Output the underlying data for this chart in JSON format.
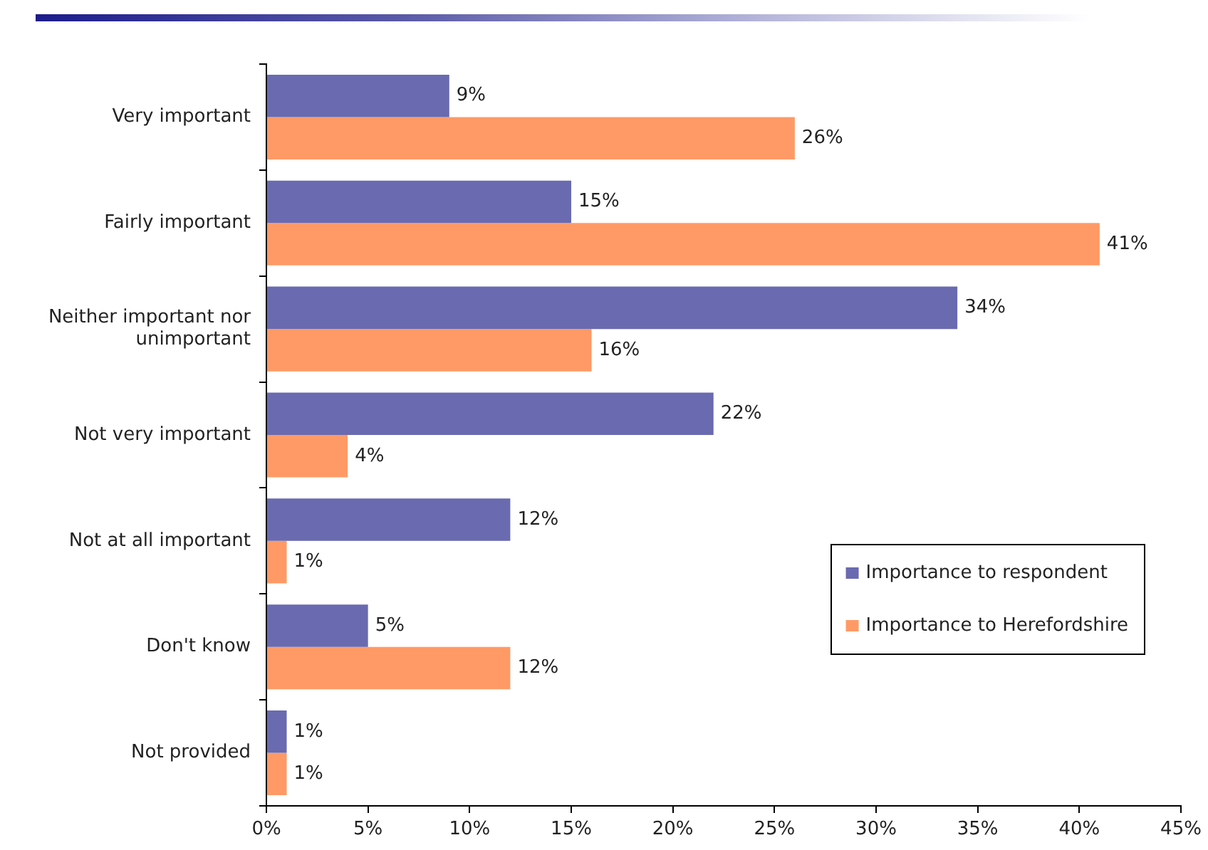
{
  "chart_data": {
    "type": "bar",
    "orientation": "horizontal",
    "categories": [
      "Very important",
      "Fairly important",
      "Neither important nor unimportant",
      "Not very important",
      "Not at all important",
      "Don't know",
      "Not provided"
    ],
    "series": [
      {
        "name": "Importance to respondent",
        "color": "#6a6ab0",
        "values": [
          9,
          15,
          34,
          22,
          12,
          5,
          1
        ],
        "value_labels": [
          "9%",
          "15%",
          "34%",
          "22%",
          "12%",
          "5%",
          "1%"
        ]
      },
      {
        "name": "Importance to Herefordshire",
        "color": "#ff9a66",
        "values": [
          26,
          41,
          16,
          4,
          1,
          12,
          1
        ],
        "value_labels": [
          "26%",
          "41%",
          "16%",
          "4%",
          "1%",
          "12%",
          "1%"
        ]
      }
    ],
    "xlim": [
      0,
      45
    ],
    "xticks": [
      {
        "value": 0,
        "label": "0%"
      },
      {
        "value": 5,
        "label": "5%"
      },
      {
        "value": 10,
        "label": "10%"
      },
      {
        "value": 15,
        "label": "15%"
      },
      {
        "value": 20,
        "label": "20%"
      },
      {
        "value": 25,
        "label": "25%"
      },
      {
        "value": 30,
        "label": "30%"
      },
      {
        "value": 35,
        "label": "35%"
      },
      {
        "value": 40,
        "label": "40%"
      },
      {
        "value": 45,
        "label": "45%"
      }
    ],
    "legend": "bottom right",
    "grid": false
  }
}
